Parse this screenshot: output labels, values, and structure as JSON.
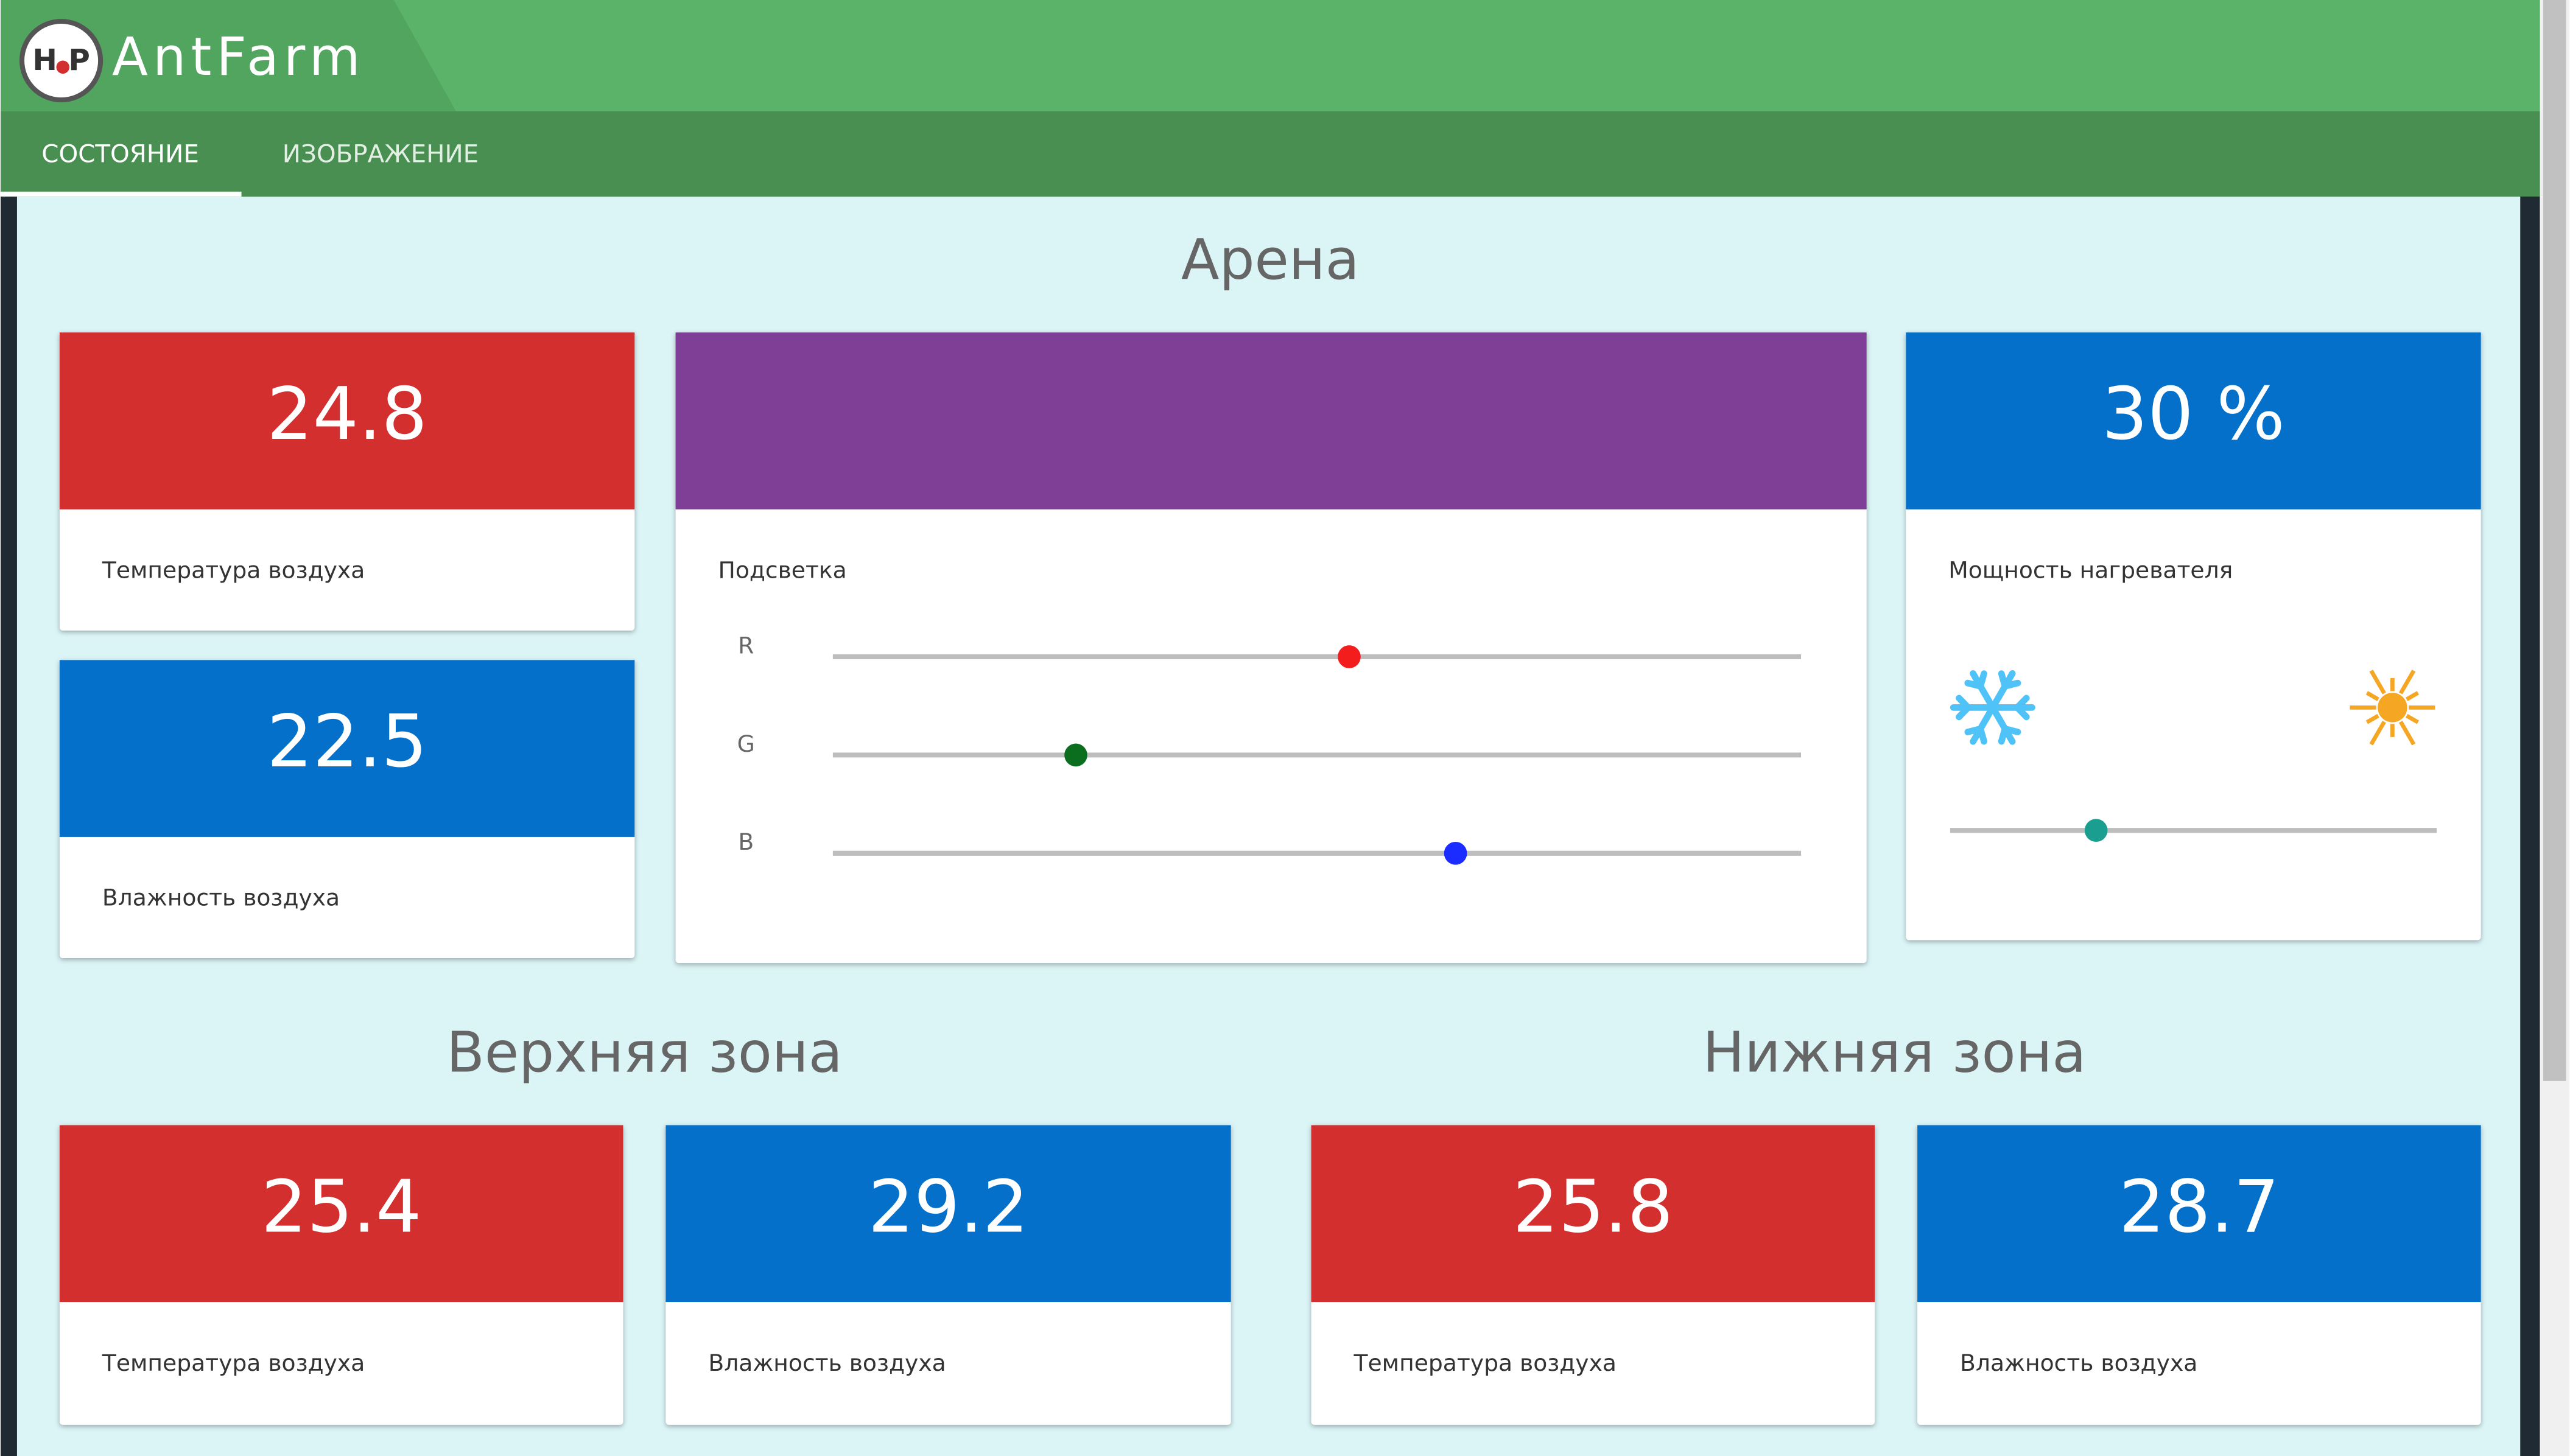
{
  "header": {
    "logo_left": "H",
    "logo_right": "P",
    "title": "AntFarm"
  },
  "tabs": [
    {
      "label": "СОСТОЯНИЕ",
      "active": true
    },
    {
      "label": "ИЗОБРАЖЕНИЕ",
      "active": false
    }
  ],
  "arena": {
    "title": "Арена",
    "temperature": {
      "value": 24.8,
      "label": "Температура воздуха"
    },
    "humidity": {
      "value": 22.5,
      "label": "Влажность воздуха"
    },
    "lighting": {
      "label": "Подсветка",
      "color": "#7f3f97",
      "range": [
        0,
        255
      ],
      "channels": [
        {
          "name": "R",
          "value": 136,
          "color": "#f41d1d"
        },
        {
          "name": "G",
          "value": 64,
          "color": "#0b6e1f"
        },
        {
          "name": "B",
          "value": 164,
          "color": "#1a2cff"
        }
      ]
    },
    "heater": {
      "value": 30,
      "value_label": "30 %",
      "label": "Мощность нагревателя",
      "range": [
        0,
        100
      ]
    }
  },
  "upper_zone": {
    "title": "Верхняя зона",
    "temperature": {
      "value": 25.4,
      "label": "Температура воздуха"
    },
    "humidity": {
      "value": 29.2,
      "label": "Влажность воздуха"
    }
  },
  "lower_zone": {
    "title": "Нижняя зона",
    "temperature": {
      "value": 25.8,
      "label": "Температура воздуха"
    },
    "humidity": {
      "value": 28.7,
      "label": "Влажность воздуха"
    }
  }
}
